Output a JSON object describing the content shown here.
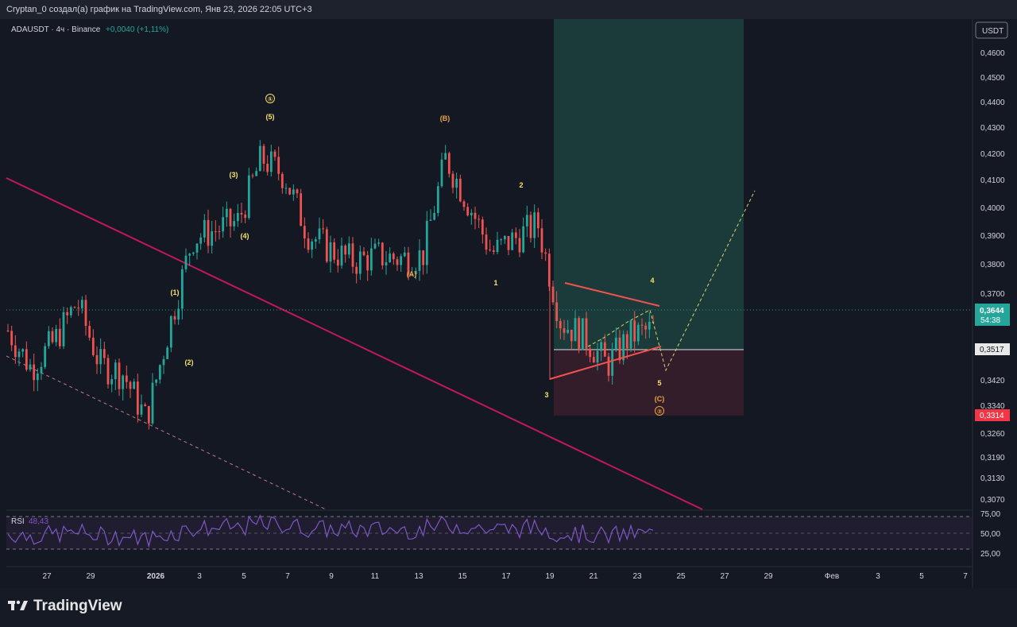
{
  "header": {
    "attribution": "Cryptan_0 создал(а) график на TradingView.com, Янв 23, 2026 22:05 UTC+3"
  },
  "legend": {
    "symbol": "ADAUSDT · 4ч · Binance",
    "change": "+0,0040 (+1,11%)",
    "up_color": "#26a69a"
  },
  "price_axis": {
    "currency": "USDT",
    "ticks": [
      "0,4600",
      "0,4500",
      "0,4400",
      "0,4300",
      "0,4200",
      "0,4100",
      "0,4000",
      "0,3900",
      "0,3800",
      "0,3700",
      "0,3420",
      "0,3340",
      "0,3260",
      "0,3190",
      "0,3130",
      "0,3070"
    ],
    "current_price": "0,3644",
    "countdown": "54:38",
    "level_price": "0,3517",
    "stop_price": "0,3314"
  },
  "time_axis": {
    "ticks": [
      "27",
      "29",
      "2026",
      "3",
      "5",
      "7",
      "9",
      "11",
      "13",
      "15",
      "17",
      "19",
      "21",
      "23",
      "25",
      "27",
      "29",
      "Фев",
      "3",
      "5",
      "7"
    ]
  },
  "rsi": {
    "label": "RSI",
    "value": "48,43",
    "ticks": [
      "75,00",
      "50,00",
      "25,00"
    ],
    "color": "#7e57c2"
  },
  "chart_data": {
    "type": "candlestick",
    "symbol": "ADAUSDT",
    "interval": "4ч",
    "exchange": "Binance",
    "y_range": [
      0.302,
      0.468
    ],
    "x_labels": [
      "27",
      "29",
      "2026",
      "3",
      "5",
      "7",
      "9",
      "11",
      "13",
      "15",
      "17",
      "19",
      "21",
      "23",
      "25",
      "27",
      "29",
      "Фев",
      "3",
      "5",
      "7"
    ],
    "close_series": [
      {
        "date": "Dec 26",
        "close": 0.364
      },
      {
        "date": "Dec 27",
        "close": 0.351
      },
      {
        "date": "Dec 28",
        "close": 0.36
      },
      {
        "date": "Dec 29",
        "close": 0.374
      },
      {
        "date": "Dec 30",
        "close": 0.352
      },
      {
        "date": "Dec 31",
        "close": 0.349
      },
      {
        "date": "Jan 1",
        "close": 0.333
      },
      {
        "date": "Jan 2",
        "close": 0.365
      },
      {
        "date": "Jan 3",
        "close": 0.396
      },
      {
        "date": "Jan 4",
        "close": 0.399
      },
      {
        "date": "Jan 5",
        "close": 0.402
      },
      {
        "date": "Jan 6",
        "close": 0.424
      },
      {
        "date": "Jan 7",
        "close": 0.418
      },
      {
        "date": "Jan 8",
        "close": 0.398
      },
      {
        "date": "Jan 9",
        "close": 0.392
      },
      {
        "date": "Jan 10",
        "close": 0.388
      },
      {
        "date": "Jan 11",
        "close": 0.39
      },
      {
        "date": "Jan 12",
        "close": 0.389
      },
      {
        "date": "Jan 13",
        "close": 0.39
      },
      {
        "date": "Jan 14",
        "close": 0.424
      },
      {
        "date": "Jan 15",
        "close": 0.408
      },
      {
        "date": "Jan 16",
        "close": 0.391
      },
      {
        "date": "Jan 17",
        "close": 0.396
      },
      {
        "date": "Jan 18",
        "close": 0.401
      },
      {
        "date": "Jan 19",
        "close": 0.367
      },
      {
        "date": "Jan 20",
        "close": 0.362
      },
      {
        "date": "Jan 21",
        "close": 0.352
      },
      {
        "date": "Jan 22",
        "close": 0.362
      },
      {
        "date": "Jan 23",
        "close": 0.3644
      }
    ],
    "wave_labels": [
      "①",
      "(5)",
      "(3)",
      "(4)",
      "(1)",
      "(2)",
      "(B)",
      "(A)",
      "2",
      "1",
      "3",
      "4",
      "5",
      "(C)",
      "②"
    ],
    "position": {
      "type": "long",
      "entry": 0.3517,
      "stop": 0.3314,
      "target": 0.46
    },
    "rsi_value": 48.43,
    "rsi_levels": [
      75,
      50,
      25
    ]
  }
}
